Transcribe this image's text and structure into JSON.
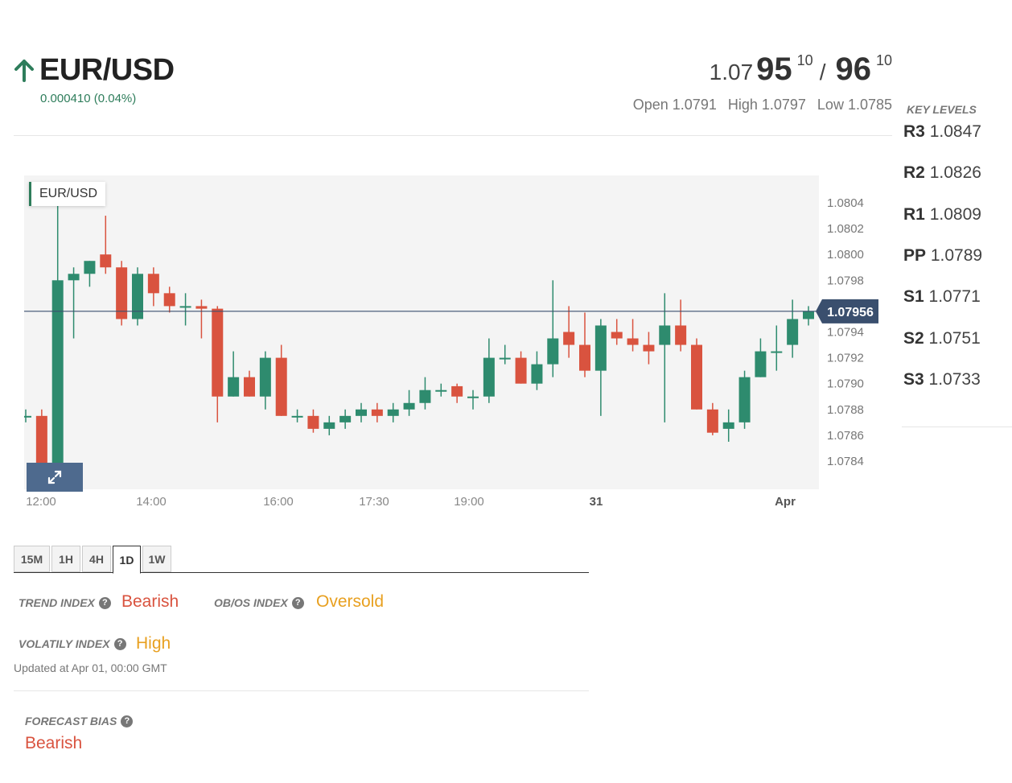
{
  "header": {
    "pair": "EUR/USD",
    "change": "0.000410 (0.04%)",
    "price": {
      "bid_lead": "1.07",
      "bid_big": "95",
      "bid_pip": "10",
      "slash": "/",
      "ask_big": "96",
      "ask_pip": "10"
    },
    "open": "Open 1.0791",
    "high": "High 1.0797",
    "low": "Low 1.0785"
  },
  "chart": {
    "label": "EUR/USD",
    "current_price": "1.07956",
    "y_ticks": [
      "1.0804",
      "1.0802",
      "1.0800",
      "1.0798",
      "1.0796",
      "1.0794",
      "1.0792",
      "1.0790",
      "1.0788",
      "1.0786",
      "1.0784"
    ],
    "x_ticks": [
      "12:00",
      "14:00",
      "16:00",
      "17:30",
      "19:00",
      "31",
      "Apr"
    ],
    "colors": {
      "up": "#2e8b6e",
      "down": "#d9533f",
      "price_line": "#3a4f6e",
      "price_tag": "#3a4f6e"
    }
  },
  "chart_data": {
    "type": "candlestick",
    "title": "EUR/USD",
    "x_ticks": [
      "12:00",
      "14:00",
      "16:00",
      "17:30",
      "19:00",
      "31",
      "Apr"
    ],
    "ylim": [
      1.0782,
      1.0806
    ],
    "current_price": 1.07956,
    "candles": [
      {
        "o": 1.07875,
        "h": 1.0788,
        "l": 1.0787,
        "c": 1.07875
      },
      {
        "o": 1.07875,
        "h": 1.0788,
        "l": 1.07825,
        "c": 1.07835
      },
      {
        "o": 1.07835,
        "h": 1.08055,
        "l": 1.0783,
        "c": 1.0798
      },
      {
        "o": 1.0798,
        "h": 1.0799,
        "l": 1.07935,
        "c": 1.07985
      },
      {
        "o": 1.07985,
        "h": 1.07995,
        "l": 1.07975,
        "c": 1.07995
      },
      {
        "o": 1.08,
        "h": 1.0803,
        "l": 1.07985,
        "c": 1.0799
      },
      {
        "o": 1.0799,
        "h": 1.07995,
        "l": 1.07945,
        "c": 1.0795
      },
      {
        "o": 1.0795,
        "h": 1.0799,
        "l": 1.07945,
        "c": 1.07985
      },
      {
        "o": 1.07985,
        "h": 1.0799,
        "l": 1.0796,
        "c": 1.0797
      },
      {
        "o": 1.0797,
        "h": 1.07975,
        "l": 1.07955,
        "c": 1.0796
      },
      {
        "o": 1.0796,
        "h": 1.0797,
        "l": 1.07945,
        "c": 1.0796
      },
      {
        "o": 1.0796,
        "h": 1.07965,
        "l": 1.07935,
        "c": 1.07958
      },
      {
        "o": 1.07958,
        "h": 1.0796,
        "l": 1.0787,
        "c": 1.0789
      },
      {
        "o": 1.0789,
        "h": 1.07925,
        "l": 1.0789,
        "c": 1.07905
      },
      {
        "o": 1.07905,
        "h": 1.0791,
        "l": 1.0789,
        "c": 1.0789
      },
      {
        "o": 1.0789,
        "h": 1.07925,
        "l": 1.0788,
        "c": 1.0792
      },
      {
        "o": 1.0792,
        "h": 1.0793,
        "l": 1.07875,
        "c": 1.07875
      },
      {
        "o": 1.07875,
        "h": 1.0788,
        "l": 1.0787,
        "c": 1.07875
      },
      {
        "o": 1.07875,
        "h": 1.0788,
        "l": 1.07862,
        "c": 1.07865
      },
      {
        "o": 1.07865,
        "h": 1.07875,
        "l": 1.0786,
        "c": 1.0787
      },
      {
        "o": 1.0787,
        "h": 1.0788,
        "l": 1.07865,
        "c": 1.07875
      },
      {
        "o": 1.07875,
        "h": 1.07885,
        "l": 1.0787,
        "c": 1.0788
      },
      {
        "o": 1.0788,
        "h": 1.07885,
        "l": 1.0787,
        "c": 1.07875
      },
      {
        "o": 1.07875,
        "h": 1.07885,
        "l": 1.0787,
        "c": 1.0788
      },
      {
        "o": 1.0788,
        "h": 1.07895,
        "l": 1.07875,
        "c": 1.07885
      },
      {
        "o": 1.07885,
        "h": 1.07905,
        "l": 1.0788,
        "c": 1.07895
      },
      {
        "o": 1.07895,
        "h": 1.079,
        "l": 1.0789,
        "c": 1.07895
      },
      {
        "o": 1.07898,
        "h": 1.079,
        "l": 1.07885,
        "c": 1.0789
      },
      {
        "o": 1.0789,
        "h": 1.07895,
        "l": 1.0788,
        "c": 1.0789
      },
      {
        "o": 1.0789,
        "h": 1.07935,
        "l": 1.07885,
        "c": 1.0792
      },
      {
        "o": 1.0792,
        "h": 1.0793,
        "l": 1.07915,
        "c": 1.0792
      },
      {
        "o": 1.0792,
        "h": 1.07925,
        "l": 1.079,
        "c": 1.079
      },
      {
        "o": 1.079,
        "h": 1.07925,
        "l": 1.07895,
        "c": 1.07915
      },
      {
        "o": 1.07915,
        "h": 1.0798,
        "l": 1.07905,
        "c": 1.07935
      },
      {
        "o": 1.0794,
        "h": 1.0796,
        "l": 1.0792,
        "c": 1.0793
      },
      {
        "o": 1.0793,
        "h": 1.07955,
        "l": 1.07905,
        "c": 1.0791
      },
      {
        "o": 1.0791,
        "h": 1.0795,
        "l": 1.07875,
        "c": 1.07945
      },
      {
        "o": 1.0794,
        "h": 1.0795,
        "l": 1.0793,
        "c": 1.07935
      },
      {
        "o": 1.07935,
        "h": 1.0795,
        "l": 1.07925,
        "c": 1.0793
      },
      {
        "o": 1.0793,
        "h": 1.0794,
        "l": 1.07915,
        "c": 1.07925
      },
      {
        "o": 1.0793,
        "h": 1.0797,
        "l": 1.0787,
        "c": 1.07945
      },
      {
        "o": 1.07945,
        "h": 1.07965,
        "l": 1.07925,
        "c": 1.0793
      },
      {
        "o": 1.0793,
        "h": 1.07935,
        "l": 1.0788,
        "c": 1.0788
      },
      {
        "o": 1.0788,
        "h": 1.07885,
        "l": 1.0786,
        "c": 1.07862
      },
      {
        "o": 1.07865,
        "h": 1.0788,
        "l": 1.07855,
        "c": 1.0787
      },
      {
        "o": 1.0787,
        "h": 1.0791,
        "l": 1.07865,
        "c": 1.07905
      },
      {
        "o": 1.07905,
        "h": 1.07935,
        "l": 1.07905,
        "c": 1.07925
      },
      {
        "o": 1.07925,
        "h": 1.07945,
        "l": 1.0791,
        "c": 1.07925
      },
      {
        "o": 1.0793,
        "h": 1.07965,
        "l": 1.0792,
        "c": 1.0795
      },
      {
        "o": 1.0795,
        "h": 1.0796,
        "l": 1.07945,
        "c": 1.07956
      }
    ]
  },
  "key_levels": {
    "title": "KEY LEVELS",
    "levels": [
      {
        "name": "R3",
        "value": "1.0847"
      },
      {
        "name": "R2",
        "value": "1.0826"
      },
      {
        "name": "R1",
        "value": "1.0809"
      },
      {
        "name": "PP",
        "value": "1.0789"
      },
      {
        "name": "S1",
        "value": "1.0771"
      },
      {
        "name": "S2",
        "value": "1.0751"
      },
      {
        "name": "S3",
        "value": "1.0733"
      }
    ]
  },
  "timeframes": {
    "tabs": [
      "15M",
      "1H",
      "4H",
      "1D",
      "1W"
    ],
    "active": "1D"
  },
  "indices": {
    "trend_label": "TREND INDEX",
    "trend_value": "Bearish",
    "obos_label": "OB/OS INDEX",
    "obos_value": "Oversold",
    "volatility_label": "VOLATILY INDEX",
    "volatility_value": "High",
    "updated": "Updated at Apr 01, 00:00 GMT",
    "help_glyph": "?"
  },
  "forecast": {
    "label": "FORECAST BIAS",
    "value": "Bearish"
  }
}
